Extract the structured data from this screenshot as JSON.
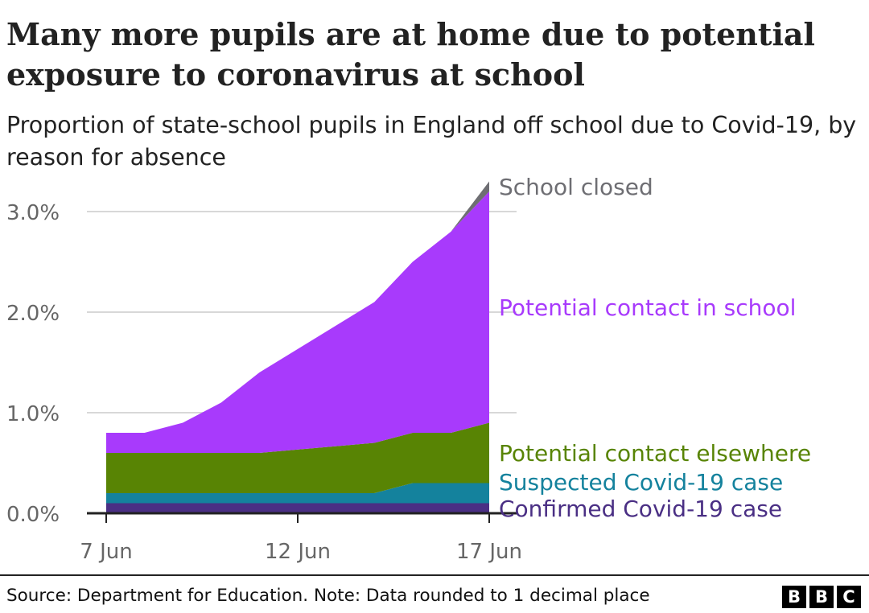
{
  "title": "Many more pupils are at home due to potential exposure to coronavirus at school",
  "subtitle": "Proportion of state-school pupils in England off school due to Covid-19, by reason for absence",
  "source": "Source: Department for Education. Note: Data rounded to 1 decimal place",
  "logo_letters": [
    "B",
    "B",
    "C"
  ],
  "chart_data": {
    "type": "area",
    "stacked": true,
    "x": [
      "2021-06-07",
      "2021-06-08",
      "2021-06-09",
      "2021-06-10",
      "2021-06-11",
      "2021-06-14",
      "2021-06-15",
      "2021-06-16",
      "2021-06-17"
    ],
    "x_ticks": [
      {
        "date": "2021-06-07",
        "label": "7 Jun"
      },
      {
        "date": "2021-06-12",
        "label": "12 Jun"
      },
      {
        "date": "2021-06-17",
        "label": "17 Jun"
      }
    ],
    "y_ticks": [
      {
        "value": 0,
        "label": "0.0%"
      },
      {
        "value": 1,
        "label": "1.0%"
      },
      {
        "value": 2,
        "label": "2.0%"
      },
      {
        "value": 3,
        "label": "3.0%"
      }
    ],
    "ylim": [
      0,
      3.3
    ],
    "grid": true,
    "series": [
      {
        "name": "Confirmed Covid-19 case",
        "color": "#4a2f84",
        "label_color": "#4a2f84",
        "values": [
          0.1,
          0.1,
          0.1,
          0.1,
          0.1,
          0.1,
          0.1,
          0.1,
          0.1
        ]
      },
      {
        "name": "Suspected Covid-19 case",
        "color": "#14829d",
        "label_color": "#14829d",
        "values": [
          0.1,
          0.1,
          0.1,
          0.1,
          0.1,
          0.1,
          0.2,
          0.2,
          0.2
        ]
      },
      {
        "name": "Potential contact elsewhere",
        "color": "#588404",
        "label_color": "#588404",
        "values": [
          0.4,
          0.4,
          0.4,
          0.4,
          0.4,
          0.5,
          0.5,
          0.5,
          0.6
        ]
      },
      {
        "name": "Potential contact in school",
        "color": "#a83afc",
        "label_color": "#a83afc",
        "values": [
          0.2,
          0.2,
          0.3,
          0.5,
          0.8,
          1.4,
          1.7,
          2.0,
          2.3
        ]
      },
      {
        "name": "School closed",
        "color": "#6e6e73",
        "label_color": "#6e6e73",
        "values": [
          0,
          0,
          0,
          0,
          0,
          0,
          0,
          0,
          0.1
        ]
      }
    ]
  }
}
